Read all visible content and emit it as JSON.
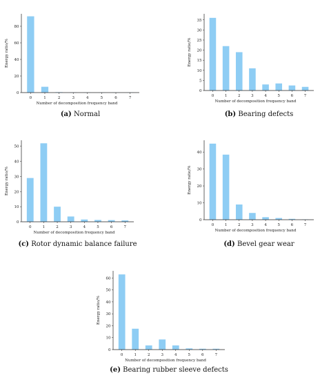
{
  "figure": {
    "panels": [
      {
        "caption_letter": "(a)",
        "caption_text": " Normal"
      },
      {
        "caption_letter": "(b)",
        "caption_text": " Bearing defects"
      },
      {
        "caption_letter": "(c)",
        "caption_text": " Rotor dynamic balance failure"
      },
      {
        "caption_letter": "(d)",
        "caption_text": " Bevel gear wear"
      },
      {
        "caption_letter": "(e)",
        "caption_text": " Bearing rubber sleeve defects"
      }
    ]
  },
  "chart_data": [
    {
      "type": "bar",
      "categories": [
        "0",
        "1",
        "2",
        "3",
        "4",
        "5",
        "6",
        "7"
      ],
      "values": [
        92,
        7,
        0.5,
        0.2,
        0.1,
        0.1,
        0.1,
        0.1
      ],
      "xlabel": "Number of decomposition frequency band",
      "ylabel": "Energy ratio/%",
      "ylim": [
        0,
        95
      ],
      "yticks": [
        0,
        20,
        40,
        60,
        80
      ],
      "grid": false
    },
    {
      "type": "bar",
      "categories": [
        "0",
        "1",
        "2",
        "3",
        "4",
        "5",
        "6",
        "7"
      ],
      "values": [
        36,
        22,
        19,
        11,
        3,
        3.5,
        2.5,
        1.8
      ],
      "xlabel": "Number of decomposition frequency band",
      "ylabel": "Energy ratio/%",
      "ylim": [
        0,
        38
      ],
      "yticks": [
        0,
        5,
        10,
        15,
        20,
        25,
        30,
        35
      ],
      "grid": false
    },
    {
      "type": "bar",
      "categories": [
        "0",
        "1",
        "2",
        "3",
        "4",
        "5",
        "6",
        "7"
      ],
      "values": [
        29,
        52,
        10,
        3.5,
        1.5,
        1.2,
        1.1,
        0.9
      ],
      "xlabel": "Number of decomposition frequency band",
      "ylabel": "Energy ratio/%",
      "ylim": [
        0,
        54
      ],
      "yticks": [
        0,
        10,
        20,
        30,
        40,
        50
      ],
      "grid": false
    },
    {
      "type": "bar",
      "categories": [
        "0",
        "1",
        "2",
        "3",
        "4",
        "5",
        "6",
        "7"
      ],
      "values": [
        45,
        38.5,
        9,
        4,
        1.5,
        1,
        0.5,
        0.2
      ],
      "xlabel": "Number of decomposition frequency band",
      "ylabel": "Energy ratio/%",
      "ylim": [
        0,
        47
      ],
      "yticks": [
        0,
        10,
        20,
        30,
        40
      ],
      "grid": false
    },
    {
      "type": "bar",
      "categories": [
        "0",
        "1",
        "2",
        "3",
        "4",
        "5",
        "6",
        "7"
      ],
      "values": [
        63,
        17.5,
        3.5,
        8.5,
        3.5,
        1,
        0.7,
        0.7
      ],
      "xlabel": "Number of decomposition frequency band",
      "ylabel": "Energy ratio/%",
      "ylim": [
        0,
        66
      ],
      "yticks": [
        0,
        10,
        20,
        30,
        40,
        50,
        60
      ],
      "grid": false
    }
  ]
}
